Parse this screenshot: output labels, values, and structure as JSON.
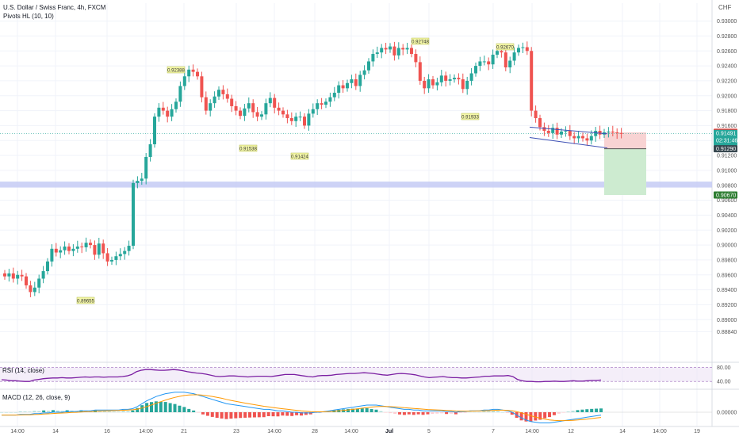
{
  "header": {
    "title": "U.S. Dollar / Swiss Franc, 4h, FXCM",
    "indicator": "Pivots HL (10, 10)",
    "currency": "CHF"
  },
  "rsi_panel": {
    "label": "RSI (14, close)",
    "levels": [
      "80.00",
      "40.00"
    ]
  },
  "macd_panel": {
    "label": "MACD (12, 26, close, 9)",
    "level": "0.00000"
  },
  "colors": {
    "up": "#26a69a",
    "down": "#ef5350",
    "rsi": "#7b1fa2",
    "macd": "#2196f3",
    "signal": "#ff9800",
    "zone": "#c5cbf5",
    "stop_zone": "#f8d3d3",
    "target_zone": "#cdebd0",
    "pivot_label_bg": "#f4f7a8"
  },
  "chart_data": {
    "type": "candlestick",
    "timeframe": "4h",
    "symbol": "USDCHF",
    "ylim": [
      0.8844,
      0.9324
    ],
    "y_ticks": [
      "0.93000",
      "0.92800",
      "0.92600",
      "0.92400",
      "0.92200",
      "0.92000",
      "0.91800",
      "0.91600",
      "0.91400",
      "0.91200",
      "0.91000",
      "0.90800",
      "0.90600",
      "0.90400",
      "0.90200",
      "0.90000",
      "0.89800",
      "0.89600",
      "0.89400",
      "0.89200",
      "0.89000",
      "0.88840"
    ],
    "x_ticks": [
      "14:00",
      "14",
      "16",
      "14:00",
      "21",
      "23",
      "14:00",
      "28",
      "14:00",
      "Jul",
      "5",
      "7",
      "14:00",
      "12",
      "14",
      "14:00",
      "19"
    ],
    "closes": [
      0.8958,
      0.8962,
      0.8955,
      0.896,
      0.8958,
      0.8946,
      0.8937,
      0.8943,
      0.8955,
      0.8965,
      0.8978,
      0.8995,
      0.899,
      0.8993,
      0.8998,
      0.8992,
      0.8995,
      0.8998,
      0.8997,
      0.9003,
      0.9,
      0.8987,
      0.9002,
      0.8989,
      0.8978,
      0.898,
      0.8985,
      0.8988,
      0.8992,
      0.8999,
      0.9083,
      0.9086,
      0.9089,
      0.9118,
      0.9135,
      0.9172,
      0.9184,
      0.918,
      0.9172,
      0.9182,
      0.9192,
      0.9213,
      0.9226,
      0.9235,
      0.9232,
      0.9226,
      0.9198,
      0.918,
      0.919,
      0.9199,
      0.9208,
      0.9202,
      0.9196,
      0.9186,
      0.918,
      0.9173,
      0.9183,
      0.919,
      0.9178,
      0.9172,
      0.9175,
      0.919,
      0.9197,
      0.9184,
      0.918,
      0.9175,
      0.917,
      0.9166,
      0.9172,
      0.9172,
      0.916,
      0.9176,
      0.9182,
      0.919,
      0.9188,
      0.9192,
      0.9198,
      0.9204,
      0.9214,
      0.921,
      0.9217,
      0.9222,
      0.9213,
      0.9228,
      0.9234,
      0.9246,
      0.9256,
      0.9258,
      0.9264,
      0.9262,
      0.9266,
      0.9254,
      0.9264,
      0.9262,
      0.9264,
      0.9256,
      0.9245,
      0.922,
      0.921,
      0.9222,
      0.9214,
      0.9218,
      0.9227,
      0.922,
      0.9222,
      0.9224,
      0.9222,
      0.9209,
      0.922,
      0.923,
      0.924,
      0.9246,
      0.9246,
      0.9242,
      0.9255,
      0.926,
      0.9258,
      0.9238,
      0.9247,
      0.9258,
      0.9264,
      0.9265,
      0.926,
      0.918,
      0.917,
      0.9158,
      0.9153,
      0.915,
      0.9157,
      0.9148,
      0.9152,
      0.9153,
      0.9146,
      0.9143,
      0.9146,
      0.9143,
      0.914,
      0.9146,
      0.9153,
      0.9148,
      0.9151,
      0.9152,
      0.9151,
      0.915,
      0.9149
    ],
    "pivots": [
      {
        "label": "0.89655",
        "type": "low"
      },
      {
        "label": "0.92388",
        "type": "high"
      },
      {
        "label": "0.91538",
        "type": "low"
      },
      {
        "label": "0.91424",
        "type": "low"
      },
      {
        "label": "0.92748",
        "type": "high"
      },
      {
        "label": "0.91933",
        "type": "low"
      },
      {
        "label": "0.92670",
        "type": "high"
      }
    ],
    "price_tags": [
      {
        "value": 0.9151,
        "label": "0.91510",
        "color": "#e53935"
      },
      {
        "value": 0.91491,
        "label": "0.91491",
        "sub": "02:31:46",
        "color": "#26a69a"
      },
      {
        "value": 0.9129,
        "label": "0.91290",
        "color": "#37474f"
      },
      {
        "value": 0.9067,
        "label": "0.90670",
        "color": "#2e7d32"
      }
    ],
    "support_zone": [
      0.9077,
      0.9085
    ],
    "trade": {
      "entry": 0.9129,
      "stop": 0.9151,
      "target": 0.9067
    },
    "rsi": [
      45,
      44,
      42,
      42,
      41,
      40,
      40,
      44,
      46,
      48,
      49,
      50,
      50,
      51,
      50,
      50,
      51,
      52,
      53,
      52,
      53,
      53,
      52,
      53,
      53,
      53,
      54,
      56,
      60,
      68,
      72,
      74,
      74,
      73,
      72,
      72,
      73,
      74,
      73,
      71,
      68,
      66,
      64,
      63,
      61,
      58,
      55,
      54,
      55,
      56,
      56,
      55,
      54,
      53,
      54,
      55,
      55,
      55,
      54,
      56,
      58,
      60,
      60,
      60,
      58,
      56,
      54,
      53,
      56,
      57,
      57,
      58,
      60,
      61,
      62,
      63,
      63,
      64,
      65,
      64,
      63,
      61,
      59,
      58,
      60,
      62,
      63,
      62,
      61,
      59,
      56,
      53,
      51,
      52,
      53,
      54,
      52,
      51,
      51,
      50,
      50,
      51,
      52,
      53,
      55,
      55,
      56,
      56,
      56,
      57,
      54,
      46,
      42,
      40,
      40,
      39,
      39,
      40,
      40,
      41,
      40,
      40,
      41,
      42,
      41,
      41,
      42,
      43,
      43,
      44
    ],
    "macd": [
      -0.0004,
      -0.0004,
      -0.0004,
      -0.0004,
      -0.0003,
      -0.0003,
      -0.0003,
      -0.0002,
      -0.0002,
      -0.0001,
      -0.0001,
      0.0,
      0.0,
      0.0,
      0.0001,
      0.0001,
      0.0001,
      0.0002,
      0.0002,
      0.0002,
      0.0003,
      0.0003,
      0.0003,
      0.0003,
      0.0003,
      0.0003,
      0.0004,
      0.0004,
      0.0005,
      0.0008,
      0.0012,
      0.0016,
      0.0019,
      0.0022,
      0.0024,
      0.0026,
      0.0027,
      0.0028,
      0.0028,
      0.0028,
      0.0027,
      0.0026,
      0.0024,
      0.0022,
      0.002,
      0.0018,
      0.0016,
      0.0014,
      0.0012,
      0.0011,
      0.001,
      0.0009,
      0.0008,
      0.0007,
      0.0006,
      0.0005,
      0.0004,
      0.0004,
      0.0003,
      0.0002,
      0.0002,
      0.0001,
      0.0,
      0.0,
      -0.0001,
      -0.0001,
      -0.0001,
      0.0,
      0.0,
      0.0001,
      0.0002,
      0.0003,
      0.0004,
      0.0005,
      0.0006,
      0.0007,
      0.0008,
      0.0009,
      0.001,
      0.001,
      0.001,
      0.0009,
      0.0008,
      0.0007,
      0.0006,
      0.0005,
      0.0004,
      0.0004,
      0.0003,
      0.0003,
      0.0002,
      0.0002,
      0.0002,
      0.0002,
      0.0002,
      0.0001,
      0.0001,
      0.0,
      0.0001,
      0.0001,
      0.0002,
      0.0002,
      0.0002,
      0.0003,
      0.0003,
      0.0004,
      0.0004,
      0.0003,
      0.0002,
      0.0,
      -0.0004,
      -0.0008,
      -0.0011,
      -0.0013,
      -0.0014,
      -0.0015,
      -0.0015,
      -0.0015,
      -0.0014,
      -0.0013,
      -0.0012,
      -0.0011,
      -0.001,
      -0.0009,
      -0.0008,
      -0.0007,
      -0.0006,
      -0.0005,
      -0.0004
    ]
  }
}
